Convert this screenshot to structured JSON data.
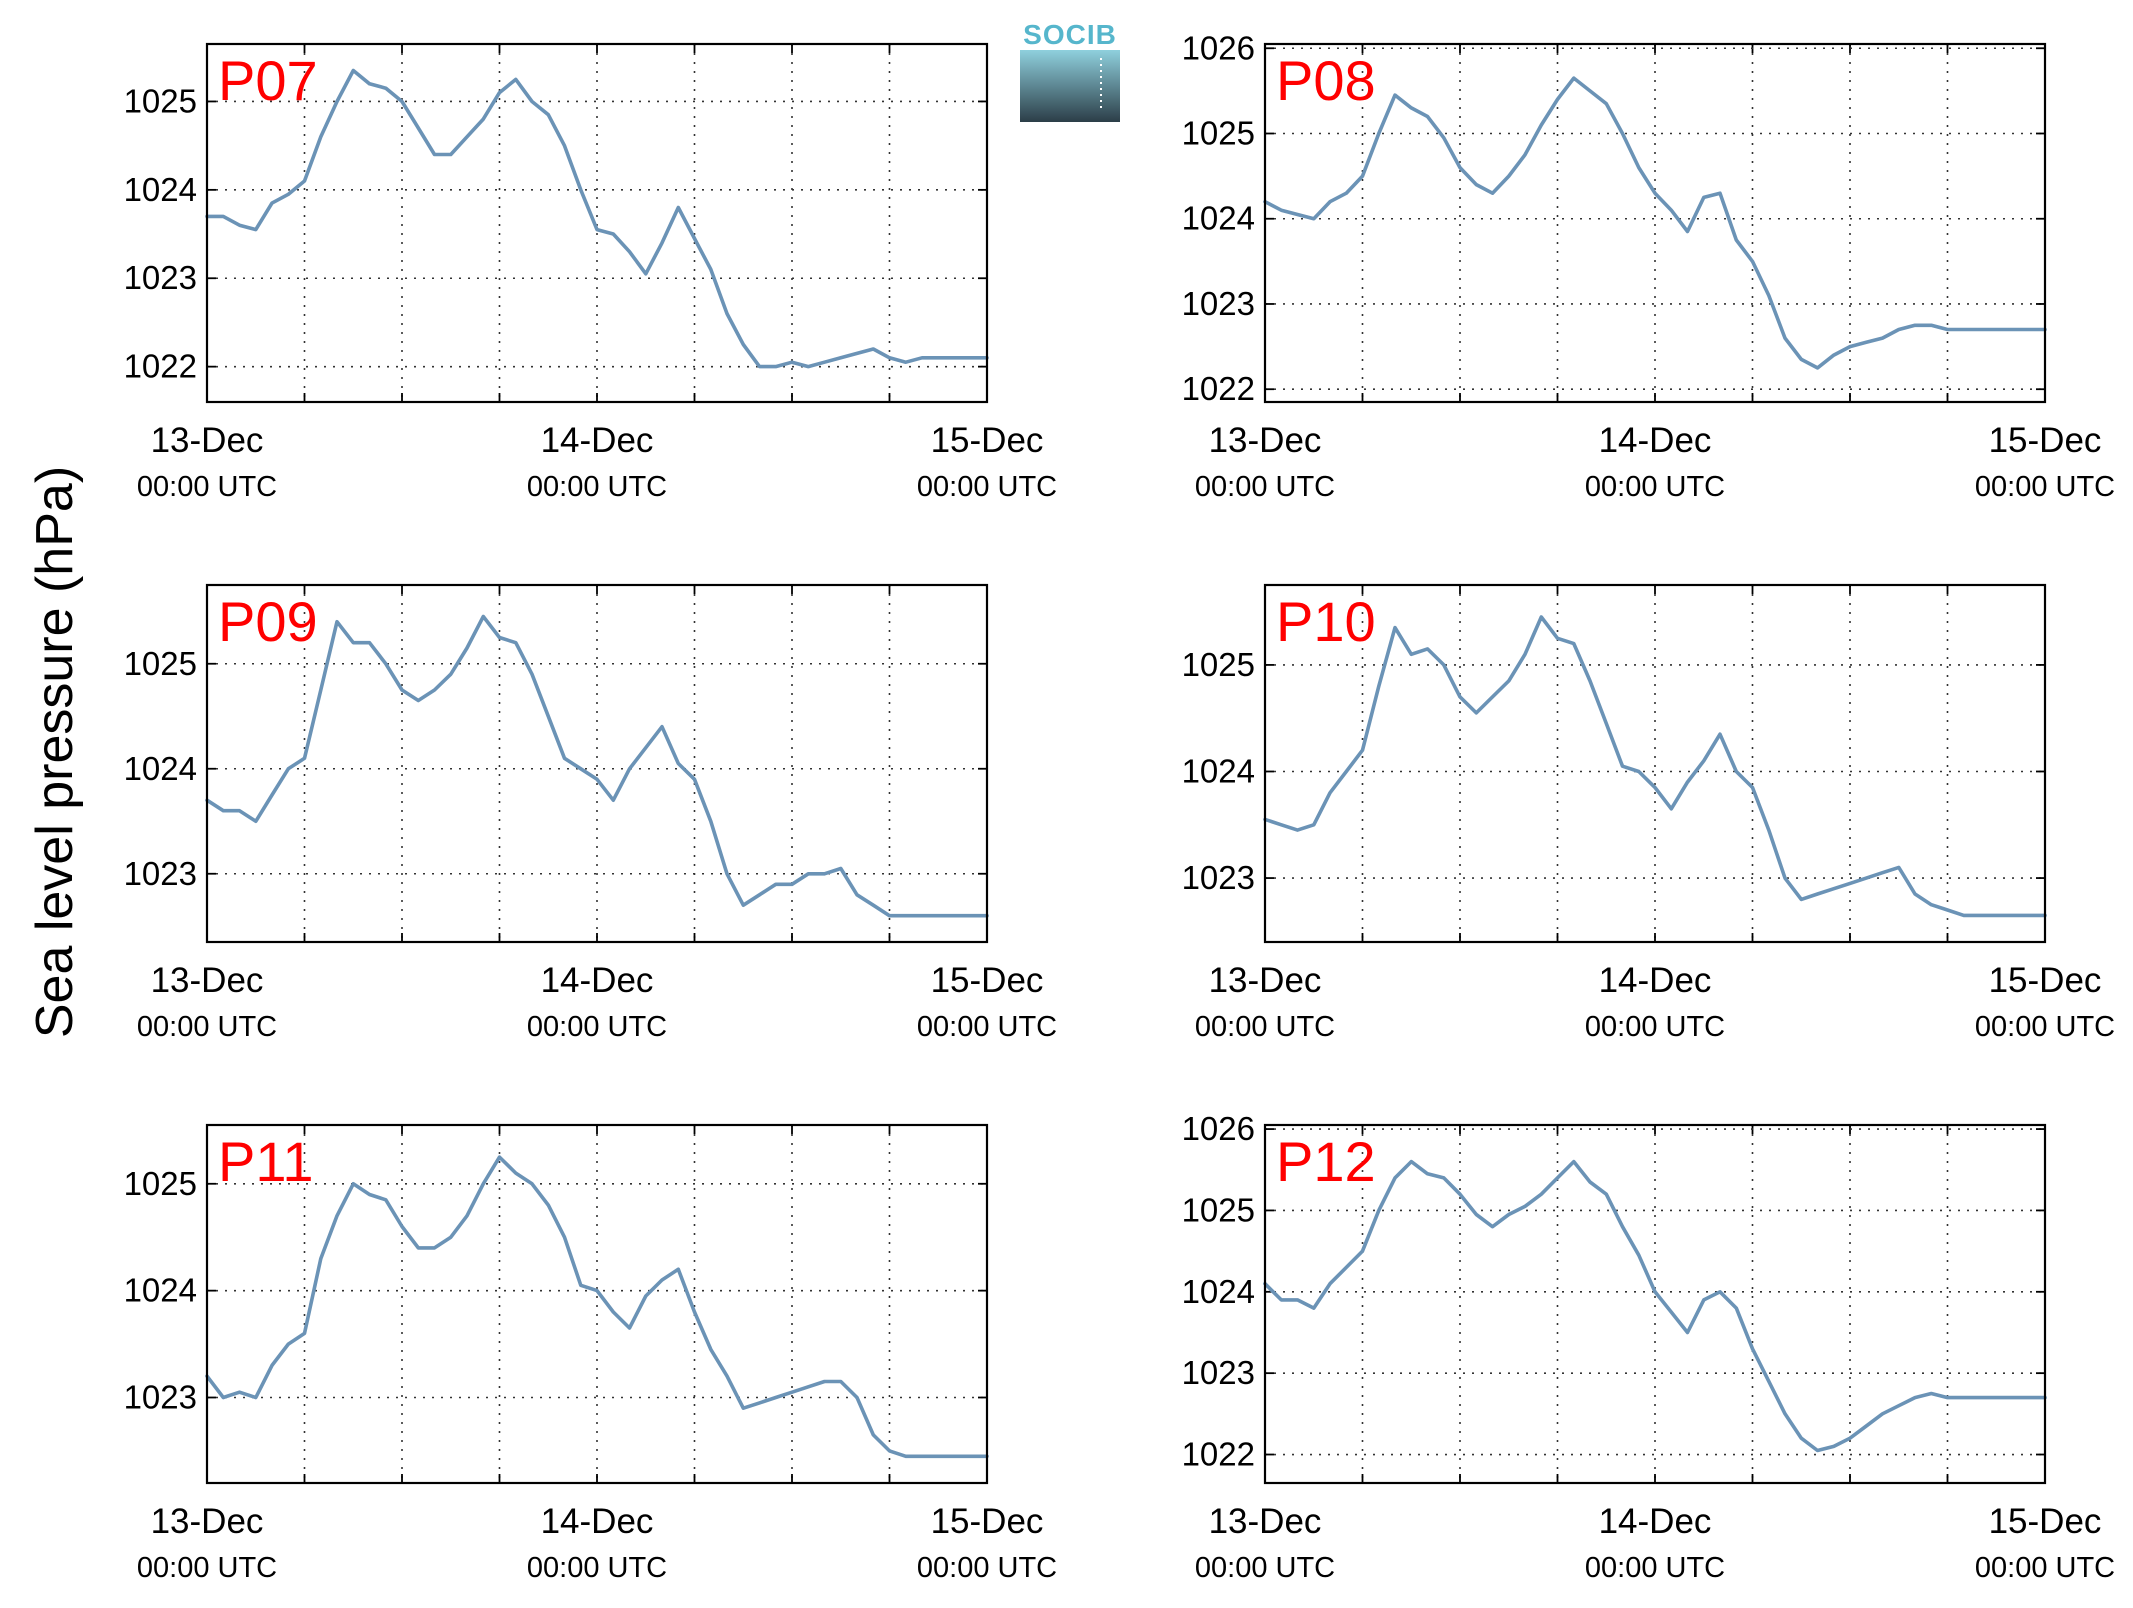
{
  "figure": {
    "ylabel": "Sea level pressure (hPa)",
    "logo_text": "SOCIB"
  },
  "colors": {
    "series": "#6b93b6",
    "panel_label": "#ff0000",
    "logo_top": "#8fd0dd",
    "logo_bottom": "#2c3e48",
    "logo_text": "#56b6cc"
  },
  "chart_data": [
    {
      "type": "line",
      "title": "P07",
      "xlabel": "",
      "ylabel": "Sea level pressure (hPa)",
      "xlim": [
        "2013-12-13T00:00",
        "2013-12-15T00:00"
      ],
      "ylim": [
        1021.6,
        1025.65
      ],
      "yticks": [
        1022,
        1023,
        1024,
        1025
      ],
      "xticks": [
        {
          "date": "13-Dec",
          "time": "00:00 UTC"
        },
        {
          "date": "14-Dec",
          "time": "00:00 UTC"
        },
        {
          "date": "15-Dec",
          "time": "00:00 UTC"
        }
      ],
      "grid": true,
      "series": [
        {
          "x": [
            "2013-12-13T00:00",
            "2013-12-13T01:00",
            "2013-12-13T02:00",
            "2013-12-13T03:00",
            "2013-12-13T04:00",
            "2013-12-13T05:00",
            "2013-12-13T06:00",
            "2013-12-13T07:00",
            "2013-12-13T08:00",
            "2013-12-13T09:00",
            "2013-12-13T10:00",
            "2013-12-13T11:00",
            "2013-12-13T12:00",
            "2013-12-13T13:00",
            "2013-12-13T14:00",
            "2013-12-13T15:00",
            "2013-12-13T16:00",
            "2013-12-13T17:00",
            "2013-12-13T18:00",
            "2013-12-13T19:00",
            "2013-12-13T20:00",
            "2013-12-13T21:00",
            "2013-12-13T22:00",
            "2013-12-13T23:00",
            "2013-12-14T00:00",
            "2013-12-14T01:00",
            "2013-12-14T02:00",
            "2013-12-14T03:00",
            "2013-12-14T04:00",
            "2013-12-14T05:00",
            "2013-12-14T06:00",
            "2013-12-14T07:00",
            "2013-12-14T08:00",
            "2013-12-14T09:00",
            "2013-12-14T10:00",
            "2013-12-14T11:00",
            "2013-12-14T12:00",
            "2013-12-14T13:00",
            "2013-12-14T14:00",
            "2013-12-14T15:00",
            "2013-12-14T16:00",
            "2013-12-14T17:00",
            "2013-12-14T18:00",
            "2013-12-14T19:00",
            "2013-12-14T20:00",
            "2013-12-14T21:00",
            "2013-12-14T22:00",
            "2013-12-14T23:00",
            "2013-12-15T00:00"
          ],
          "y": [
            1023.7,
            1023.7,
            1023.6,
            1023.55,
            1023.85,
            1023.95,
            1024.1,
            1024.6,
            1025.0,
            1025.35,
            1025.2,
            1025.15,
            1025.0,
            1024.7,
            1024.4,
            1024.4,
            1024.6,
            1024.8,
            1025.1,
            1025.25,
            1025.0,
            1024.85,
            1024.5,
            1024.0,
            1023.55,
            1023.5,
            1023.3,
            1023.05,
            1023.4,
            1023.8,
            1023.45,
            1023.1,
            1022.6,
            1022.25,
            1022.0,
            1022.0,
            1022.05,
            1022.0,
            1022.05,
            1022.1,
            1022.15,
            1022.2,
            1022.1,
            1022.05,
            1022.1,
            1022.1,
            1022.1,
            1022.1,
            1022.1
          ]
        }
      ]
    },
    {
      "type": "line",
      "title": "P08",
      "xlabel": "",
      "ylabel": "Sea level pressure (hPa)",
      "xlim": [
        "2013-12-13T00:00",
        "2013-12-15T00:00"
      ],
      "ylim": [
        1021.85,
        1026.05
      ],
      "yticks": [
        1022,
        1023,
        1024,
        1025,
        1026
      ],
      "xticks": [
        {
          "date": "13-Dec",
          "time": "00:00 UTC"
        },
        {
          "date": "14-Dec",
          "time": "00:00 UTC"
        },
        {
          "date": "15-Dec",
          "time": "00:00 UTC"
        }
      ],
      "grid": true,
      "series": [
        {
          "x": [
            "2013-12-13T00:00",
            "2013-12-13T01:00",
            "2013-12-13T02:00",
            "2013-12-13T03:00",
            "2013-12-13T04:00",
            "2013-12-13T05:00",
            "2013-12-13T06:00",
            "2013-12-13T07:00",
            "2013-12-13T08:00",
            "2013-12-13T09:00",
            "2013-12-13T10:00",
            "2013-12-13T11:00",
            "2013-12-13T12:00",
            "2013-12-13T13:00",
            "2013-12-13T14:00",
            "2013-12-13T15:00",
            "2013-12-13T16:00",
            "2013-12-13T17:00",
            "2013-12-13T18:00",
            "2013-12-13T19:00",
            "2013-12-13T20:00",
            "2013-12-13T21:00",
            "2013-12-13T22:00",
            "2013-12-13T23:00",
            "2013-12-14T00:00",
            "2013-12-14T01:00",
            "2013-12-14T02:00",
            "2013-12-14T03:00",
            "2013-12-14T04:00",
            "2013-12-14T05:00",
            "2013-12-14T06:00",
            "2013-12-14T07:00",
            "2013-12-14T08:00",
            "2013-12-14T09:00",
            "2013-12-14T10:00",
            "2013-12-14T11:00",
            "2013-12-14T12:00",
            "2013-12-14T13:00",
            "2013-12-14T14:00",
            "2013-12-14T15:00",
            "2013-12-14T16:00",
            "2013-12-14T17:00",
            "2013-12-14T18:00",
            "2013-12-14T19:00",
            "2013-12-14T20:00",
            "2013-12-14T21:00",
            "2013-12-14T22:00",
            "2013-12-14T23:00",
            "2013-12-15T00:00"
          ],
          "y": [
            1024.2,
            1024.1,
            1024.05,
            1024.0,
            1024.2,
            1024.3,
            1024.5,
            1025.0,
            1025.45,
            1025.3,
            1025.2,
            1024.95,
            1024.6,
            1024.4,
            1024.3,
            1024.5,
            1024.75,
            1025.1,
            1025.4,
            1025.65,
            1025.5,
            1025.35,
            1025.0,
            1024.6,
            1024.3,
            1024.1,
            1023.85,
            1024.25,
            1024.3,
            1023.75,
            1023.5,
            1023.1,
            1022.6,
            1022.35,
            1022.25,
            1022.4,
            1022.5,
            1022.55,
            1022.6,
            1022.7,
            1022.75,
            1022.75,
            1022.7,
            1022.7,
            1022.7,
            1022.7,
            1022.7,
            1022.7,
            1022.7
          ]
        }
      ]
    },
    {
      "type": "line",
      "title": "P09",
      "xlabel": "",
      "ylabel": "Sea level pressure (hPa)",
      "xlim": [
        "2013-12-13T00:00",
        "2013-12-15T00:00"
      ],
      "ylim": [
        1022.35,
        1025.75
      ],
      "yticks": [
        1023,
        1024,
        1025
      ],
      "xticks": [
        {
          "date": "13-Dec",
          "time": "00:00 UTC"
        },
        {
          "date": "14-Dec",
          "time": "00:00 UTC"
        },
        {
          "date": "15-Dec",
          "time": "00:00 UTC"
        }
      ],
      "grid": true,
      "series": [
        {
          "x": [
            "2013-12-13T00:00",
            "2013-12-13T01:00",
            "2013-12-13T02:00",
            "2013-12-13T03:00",
            "2013-12-13T04:00",
            "2013-12-13T05:00",
            "2013-12-13T06:00",
            "2013-12-13T07:00",
            "2013-12-13T08:00",
            "2013-12-13T09:00",
            "2013-12-13T10:00",
            "2013-12-13T11:00",
            "2013-12-13T12:00",
            "2013-12-13T13:00",
            "2013-12-13T14:00",
            "2013-12-13T15:00",
            "2013-12-13T16:00",
            "2013-12-13T17:00",
            "2013-12-13T18:00",
            "2013-12-13T19:00",
            "2013-12-13T20:00",
            "2013-12-13T21:00",
            "2013-12-13T22:00",
            "2013-12-13T23:00",
            "2013-12-14T00:00",
            "2013-12-14T01:00",
            "2013-12-14T02:00",
            "2013-12-14T03:00",
            "2013-12-14T04:00",
            "2013-12-14T05:00",
            "2013-12-14T06:00",
            "2013-12-14T07:00",
            "2013-12-14T08:00",
            "2013-12-14T09:00",
            "2013-12-14T10:00",
            "2013-12-14T11:00",
            "2013-12-14T12:00",
            "2013-12-14T13:00",
            "2013-12-14T14:00",
            "2013-12-14T15:00",
            "2013-12-14T16:00",
            "2013-12-14T17:00",
            "2013-12-14T18:00",
            "2013-12-14T19:00",
            "2013-12-14T20:00",
            "2013-12-14T21:00",
            "2013-12-14T22:00",
            "2013-12-14T23:00",
            "2013-12-15T00:00"
          ],
          "y": [
            1023.7,
            1023.6,
            1023.6,
            1023.5,
            1023.75,
            1024.0,
            1024.1,
            1024.75,
            1025.4,
            1025.2,
            1025.2,
            1025.0,
            1024.75,
            1024.65,
            1024.75,
            1024.9,
            1025.15,
            1025.45,
            1025.25,
            1025.2,
            1024.9,
            1024.5,
            1024.1,
            1024.0,
            1023.9,
            1023.7,
            1024.0,
            1024.2,
            1024.4,
            1024.05,
            1023.9,
            1023.5,
            1023.0,
            1022.7,
            1022.8,
            1022.9,
            1022.9,
            1023.0,
            1023.0,
            1023.05,
            1022.8,
            1022.7,
            1022.6,
            1022.6,
            1022.6,
            1022.6,
            1022.6,
            1022.6,
            1022.6
          ]
        }
      ]
    },
    {
      "type": "line",
      "title": "P10",
      "xlabel": "",
      "ylabel": "Sea level pressure (hPa)",
      "xlim": [
        "2013-12-13T00:00",
        "2013-12-15T00:00"
      ],
      "ylim": [
        1022.4,
        1025.75
      ],
      "yticks": [
        1023,
        1024,
        1025
      ],
      "xticks": [
        {
          "date": "13-Dec",
          "time": "00:00 UTC"
        },
        {
          "date": "14-Dec",
          "time": "00:00 UTC"
        },
        {
          "date": "15-Dec",
          "time": "00:00 UTC"
        }
      ],
      "grid": true,
      "series": [
        {
          "x": [
            "2013-12-13T00:00",
            "2013-12-13T01:00",
            "2013-12-13T02:00",
            "2013-12-13T03:00",
            "2013-12-13T04:00",
            "2013-12-13T05:00",
            "2013-12-13T06:00",
            "2013-12-13T07:00",
            "2013-12-13T08:00",
            "2013-12-13T09:00",
            "2013-12-13T10:00",
            "2013-12-13T11:00",
            "2013-12-13T12:00",
            "2013-12-13T13:00",
            "2013-12-13T14:00",
            "2013-12-13T15:00",
            "2013-12-13T16:00",
            "2013-12-13T17:00",
            "2013-12-13T18:00",
            "2013-12-13T19:00",
            "2013-12-13T20:00",
            "2013-12-13T21:00",
            "2013-12-13T22:00",
            "2013-12-13T23:00",
            "2013-12-14T00:00",
            "2013-12-14T01:00",
            "2013-12-14T02:00",
            "2013-12-14T03:00",
            "2013-12-14T04:00",
            "2013-12-14T05:00",
            "2013-12-14T06:00",
            "2013-12-14T07:00",
            "2013-12-14T08:00",
            "2013-12-14T09:00",
            "2013-12-14T10:00",
            "2013-12-14T11:00",
            "2013-12-14T12:00",
            "2013-12-14T13:00",
            "2013-12-14T14:00",
            "2013-12-14T15:00",
            "2013-12-14T16:00",
            "2013-12-14T17:00",
            "2013-12-14T18:00",
            "2013-12-14T19:00",
            "2013-12-14T20:00",
            "2013-12-14T21:00",
            "2013-12-14T22:00",
            "2013-12-14T23:00",
            "2013-12-15T00:00"
          ],
          "y": [
            1023.55,
            1023.5,
            1023.45,
            1023.5,
            1023.8,
            1024.0,
            1024.2,
            1024.8,
            1025.35,
            1025.1,
            1025.15,
            1025.0,
            1024.7,
            1024.55,
            1024.7,
            1024.85,
            1025.1,
            1025.45,
            1025.25,
            1025.2,
            1024.85,
            1024.45,
            1024.05,
            1024.0,
            1023.85,
            1023.65,
            1023.9,
            1024.1,
            1024.35,
            1024.0,
            1023.85,
            1023.45,
            1023.0,
            1022.8,
            1022.85,
            1022.9,
            1022.95,
            1023.0,
            1023.05,
            1023.1,
            1022.85,
            1022.75,
            1022.7,
            1022.65,
            1022.65,
            1022.65,
            1022.65,
            1022.65,
            1022.65
          ]
        }
      ]
    },
    {
      "type": "line",
      "title": "P11",
      "xlabel": "",
      "ylabel": "Sea level pressure (hPa)",
      "xlim": [
        "2013-12-13T00:00",
        "2013-12-15T00:00"
      ],
      "ylim": [
        1022.2,
        1025.55
      ],
      "yticks": [
        1023,
        1024,
        1025
      ],
      "xticks": [
        {
          "date": "13-Dec",
          "time": "00:00 UTC"
        },
        {
          "date": "14-Dec",
          "time": "00:00 UTC"
        },
        {
          "date": "15-Dec",
          "time": "00:00 UTC"
        }
      ],
      "grid": true,
      "series": [
        {
          "x": [
            "2013-12-13T00:00",
            "2013-12-13T01:00",
            "2013-12-13T02:00",
            "2013-12-13T03:00",
            "2013-12-13T04:00",
            "2013-12-13T05:00",
            "2013-12-13T06:00",
            "2013-12-13T07:00",
            "2013-12-13T08:00",
            "2013-12-13T09:00",
            "2013-12-13T10:00",
            "2013-12-13T11:00",
            "2013-12-13T12:00",
            "2013-12-13T13:00",
            "2013-12-13T14:00",
            "2013-12-13T15:00",
            "2013-12-13T16:00",
            "2013-12-13T17:00",
            "2013-12-13T18:00",
            "2013-12-13T19:00",
            "2013-12-13T20:00",
            "2013-12-13T21:00",
            "2013-12-13T22:00",
            "2013-12-13T23:00",
            "2013-12-14T00:00",
            "2013-12-14T01:00",
            "2013-12-14T02:00",
            "2013-12-14T03:00",
            "2013-12-14T04:00",
            "2013-12-14T05:00",
            "2013-12-14T06:00",
            "2013-12-14T07:00",
            "2013-12-14T08:00",
            "2013-12-14T09:00",
            "2013-12-14T10:00",
            "2013-12-14T11:00",
            "2013-12-14T12:00",
            "2013-12-14T13:00",
            "2013-12-14T14:00",
            "2013-12-14T15:00",
            "2013-12-14T16:00",
            "2013-12-14T17:00",
            "2013-12-14T18:00",
            "2013-12-14T19:00",
            "2013-12-14T20:00",
            "2013-12-14T21:00",
            "2013-12-14T22:00",
            "2013-12-14T23:00",
            "2013-12-15T00:00"
          ],
          "y": [
            1023.2,
            1023.0,
            1023.05,
            1023.0,
            1023.3,
            1023.5,
            1023.6,
            1024.3,
            1024.7,
            1025.0,
            1024.9,
            1024.85,
            1024.6,
            1024.4,
            1024.4,
            1024.5,
            1024.7,
            1025.0,
            1025.25,
            1025.1,
            1025.0,
            1024.8,
            1024.5,
            1024.05,
            1024.0,
            1023.8,
            1023.65,
            1023.95,
            1024.1,
            1024.2,
            1023.8,
            1023.45,
            1023.2,
            1022.9,
            1022.95,
            1023.0,
            1023.05,
            1023.1,
            1023.15,
            1023.15,
            1023.0,
            1022.65,
            1022.5,
            1022.45,
            1022.45,
            1022.45,
            1022.45,
            1022.45,
            1022.45
          ]
        }
      ]
    },
    {
      "type": "line",
      "title": "P12",
      "xlabel": "",
      "ylabel": "Sea level pressure (hPa)",
      "xlim": [
        "2013-12-13T00:00",
        "2013-12-15T00:00"
      ],
      "ylim": [
        1021.65,
        1026.05
      ],
      "yticks": [
        1022,
        1023,
        1024,
        1025,
        1026
      ],
      "xticks": [
        {
          "date": "13-Dec",
          "time": "00:00 UTC"
        },
        {
          "date": "14-Dec",
          "time": "00:00 UTC"
        },
        {
          "date": "15-Dec",
          "time": "00:00 UTC"
        }
      ],
      "grid": true,
      "series": [
        {
          "x": [
            "2013-12-13T00:00",
            "2013-12-13T01:00",
            "2013-12-13T02:00",
            "2013-12-13T03:00",
            "2013-12-13T04:00",
            "2013-12-13T05:00",
            "2013-12-13T06:00",
            "2013-12-13T07:00",
            "2013-12-13T08:00",
            "2013-12-13T09:00",
            "2013-12-13T10:00",
            "2013-12-13T11:00",
            "2013-12-13T12:00",
            "2013-12-13T13:00",
            "2013-12-13T14:00",
            "2013-12-13T15:00",
            "2013-12-13T16:00",
            "2013-12-13T17:00",
            "2013-12-13T18:00",
            "2013-12-13T19:00",
            "2013-12-13T20:00",
            "2013-12-13T21:00",
            "2013-12-13T22:00",
            "2013-12-13T23:00",
            "2013-12-14T00:00",
            "2013-12-14T01:00",
            "2013-12-14T02:00",
            "2013-12-14T03:00",
            "2013-12-14T04:00",
            "2013-12-14T05:00",
            "2013-12-14T06:00",
            "2013-12-14T07:00",
            "2013-12-14T08:00",
            "2013-12-14T09:00",
            "2013-12-14T10:00",
            "2013-12-14T11:00",
            "2013-12-14T12:00",
            "2013-12-14T13:00",
            "2013-12-14T14:00",
            "2013-12-14T15:00",
            "2013-12-14T16:00",
            "2013-12-14T17:00",
            "2013-12-14T18:00",
            "2013-12-14T19:00",
            "2013-12-14T20:00",
            "2013-12-14T21:00",
            "2013-12-14T22:00",
            "2013-12-14T23:00",
            "2013-12-15T00:00"
          ],
          "y": [
            1024.1,
            1023.9,
            1023.9,
            1023.8,
            1024.1,
            1024.3,
            1024.5,
            1025.0,
            1025.4,
            1025.6,
            1025.45,
            1025.4,
            1025.2,
            1024.95,
            1024.8,
            1024.95,
            1025.05,
            1025.2,
            1025.4,
            1025.6,
            1025.35,
            1025.2,
            1024.8,
            1024.45,
            1024.0,
            1023.75,
            1023.5,
            1023.9,
            1024.0,
            1023.8,
            1023.3,
            1022.9,
            1022.5,
            1022.2,
            1022.05,
            1022.1,
            1022.2,
            1022.35,
            1022.5,
            1022.6,
            1022.7,
            1022.75,
            1022.7,
            1022.7,
            1022.7,
            1022.7,
            1022.7,
            1022.7,
            1022.7
          ]
        }
      ]
    }
  ]
}
